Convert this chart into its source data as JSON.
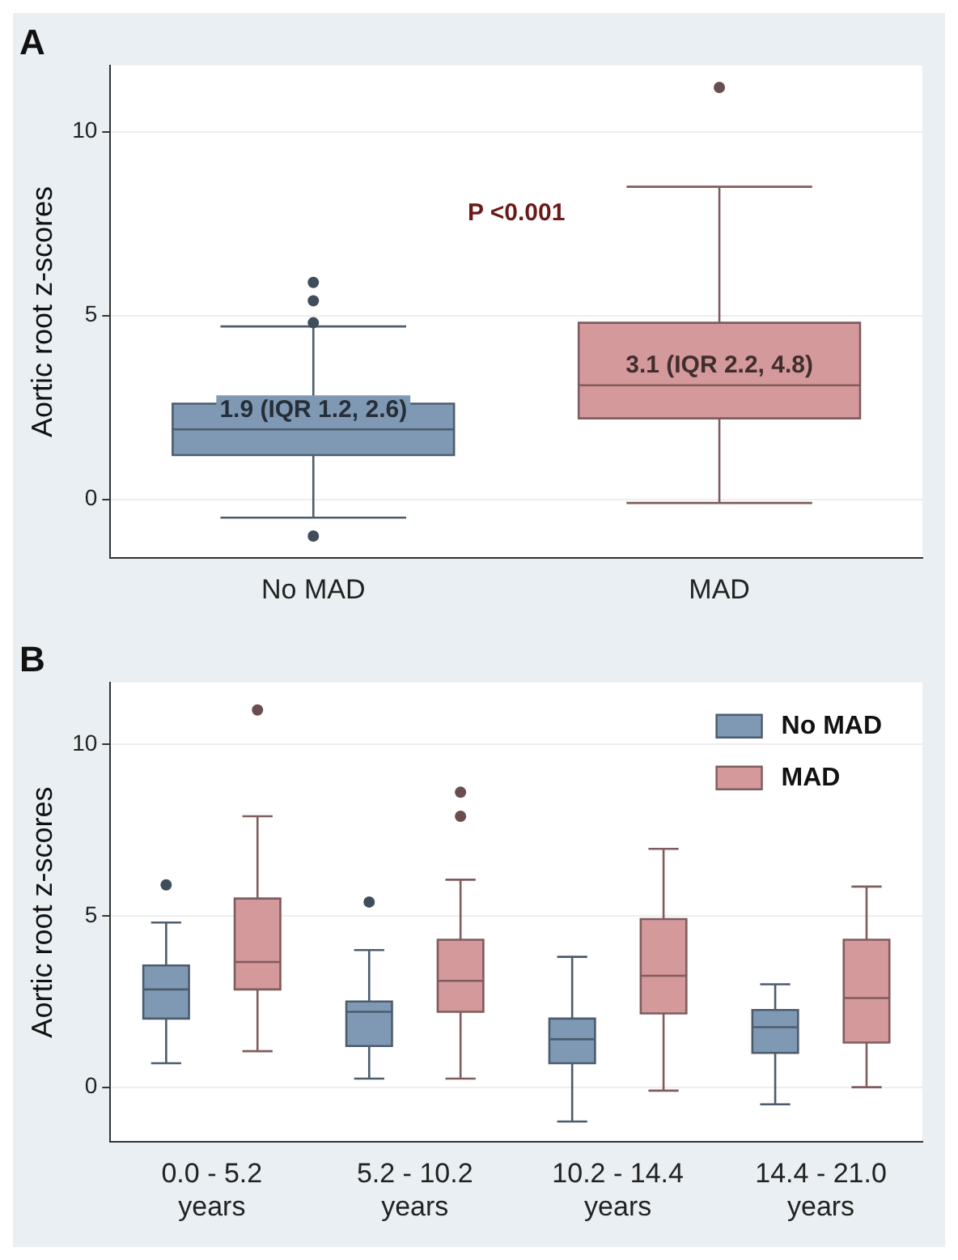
{
  "chart_data": [
    {
      "type": "box",
      "title": "A",
      "ylabel": "Aortic root z-scores",
      "categories": [
        "No MAD",
        "MAD"
      ],
      "boxes": [
        {
          "low": -0.5,
          "q1": 1.2,
          "median": 1.9,
          "q3": 2.6,
          "high": 4.7,
          "outliers": [
            5.9,
            5.4,
            4.8,
            -1.0
          ]
        },
        {
          "low": -0.1,
          "q1": 2.2,
          "median": 3.1,
          "q3": 4.8,
          "high": 8.5,
          "outliers": [
            11.2
          ]
        }
      ],
      "colors": [
        "#7f99b5",
        "#d4999b"
      ],
      "ylim": [
        -1.6,
        11.8
      ],
      "yticks": [
        0,
        5,
        10
      ],
      "grid": "y",
      "annotations": [
        "P <0.001",
        {
          "text": "1.9 (IQR 1.2, 2.6)",
          "x": "No MAD",
          "y": 1.9
        },
        {
          "text": "3.1 (IQR 2.2, 4.8)",
          "x": "MAD",
          "y": 3.1
        }
      ]
    },
    {
      "type": "box",
      "title": "B",
      "ylabel": "Aortic root z-scores",
      "categories": [
        "0.0 - 5.2\nyears",
        "5.2 - 10.2\nyears",
        "10.2 - 14.4\nyears",
        "14.4 - 21.0\nyears"
      ],
      "series": [
        {
          "name": "No MAD",
          "color": "#7f99b5",
          "boxes": [
            {
              "low": 0.7,
              "q1": 2.0,
              "median": 2.85,
              "q3": 3.55,
              "high": 4.8,
              "outliers": [
                5.9
              ]
            },
            {
              "low": 0.25,
              "q1": 1.2,
              "median": 2.2,
              "q3": 2.5,
              "high": 4.0,
              "outliers": [
                5.4
              ]
            },
            {
              "low": -1.0,
              "q1": 0.7,
              "median": 1.4,
              "q3": 2.0,
              "high": 3.8
            },
            {
              "low": -0.5,
              "q1": 1.0,
              "median": 1.75,
              "q3": 2.25,
              "high": 3.0
            }
          ]
        },
        {
          "name": "MAD",
          "color": "#d4999b",
          "boxes": [
            {
              "low": 1.05,
              "q1": 2.85,
              "median": 3.65,
              "q3": 5.5,
              "high": 7.9,
              "outliers": [
                11.0
              ]
            },
            {
              "low": 0.25,
              "q1": 2.2,
              "median": 3.1,
              "q3": 4.3,
              "high": 6.05,
              "outliers": [
                8.6,
                7.9
              ]
            },
            {
              "low": -0.1,
              "q1": 2.15,
              "median": 3.25,
              "q3": 4.9,
              "high": 6.95
            },
            {
              "low": 0.0,
              "q1": 1.3,
              "median": 2.6,
              "q3": 4.3,
              "high": 5.85
            }
          ]
        }
      ],
      "ylim": [
        -1.6,
        11.8
      ],
      "yticks": [
        0,
        5,
        10
      ],
      "grid": "y",
      "legend": "top right"
    }
  ]
}
